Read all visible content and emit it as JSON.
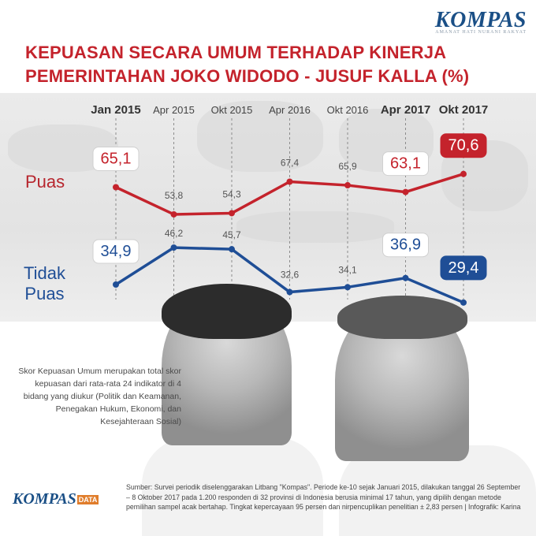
{
  "brand": {
    "name": "KOMPAS",
    "tagline": "AMANAT HATI NURANI RAKYAT"
  },
  "title": {
    "line1": "KEPUASAN SECARA UMUM TERHADAP KINERJA",
    "line2": "PEMERINTAHAN JOKO WIDODO - JUSUF KALLA (%)"
  },
  "series_labels": {
    "puas": "Puas",
    "tidak_puas_line1": "Tidak",
    "tidak_puas_line2": "Puas"
  },
  "note": "Skor Kepuasan Umum merupakan total skor kepuasan dari rata-rata 24 indikator di 4 bidang yang diukur (Politik dan Keamanan, Penegakan Hukum, Ekonomi, dan Kesejahteraan Sosial)",
  "footer": {
    "brand": "KOMPAS",
    "brand_suffix": "DATA",
    "source": "Sumber: Survei periodik diselenggarakan Litbang \"Kompas\". Periode ke-10 sejak Januari 2015, dilakukan tanggal 26 September – 8 Oktober 2017 pada 1.200 responden di 32 provinsi di Indonesia berusia minimal 17 tahun, yang dipilih dengan metode pemilihan sampel acak bertahap. Tingkat kepercayaan 95 persen dan nirpencuplikan penelitian ± 2,83 persen | Infografik: Karina"
  },
  "colors": {
    "puas": "#c4232c",
    "tidak_puas": "#1f4e96",
    "title": "#c4232c",
    "brand": "#1a4f86"
  },
  "chart_data": {
    "type": "line",
    "categories": [
      "Jan 2015",
      "Apr 2015",
      "Okt 2015",
      "Apr 2016",
      "Okt 2016",
      "Apr 2017",
      "Okt 2017"
    ],
    "bold_categories": [
      0,
      5,
      6
    ],
    "series": [
      {
        "name": "Puas",
        "values": [
          65.1,
          53.8,
          54.3,
          67.4,
          65.9,
          63.1,
          70.6
        ],
        "labels": [
          "65,1",
          "53,8",
          "54,3",
          "67,4",
          "65,9",
          "63,1",
          "70,6"
        ],
        "highlighted": [
          0,
          5,
          6
        ]
      },
      {
        "name": "Tidak Puas",
        "values": [
          34.9,
          46.2,
          45.7,
          32.6,
          34.1,
          36.9,
          29.4
        ],
        "labels": [
          "34,9",
          "46,2",
          "45,7",
          "32,6",
          "34,1",
          "36,9",
          "29,4"
        ],
        "highlighted": [
          0,
          5,
          6
        ]
      }
    ]
  }
}
